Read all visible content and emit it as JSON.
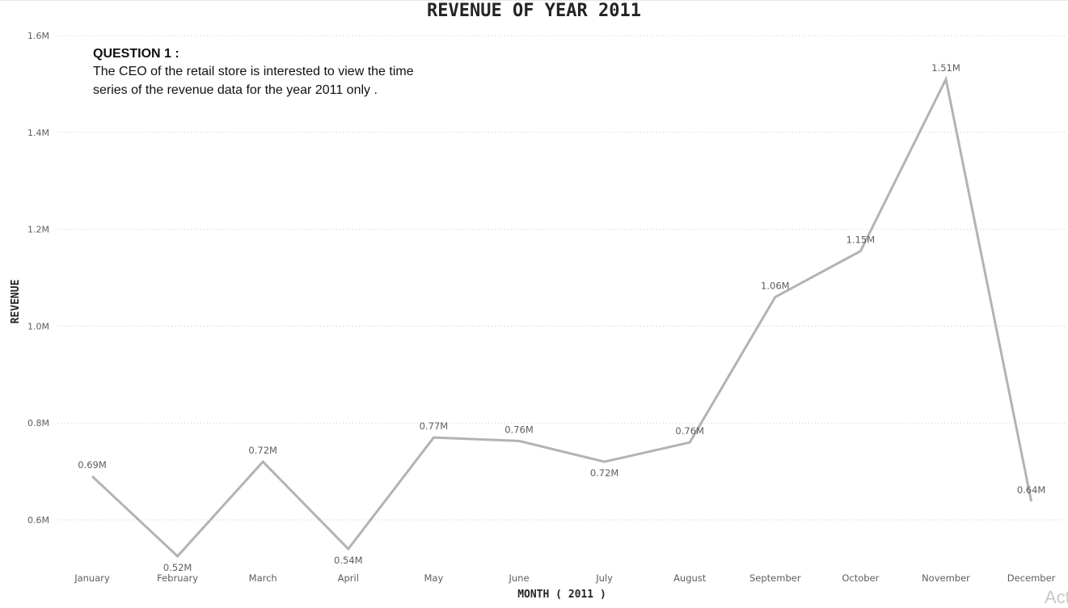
{
  "question": {
    "heading": "QUESTION 1 :",
    "body": "The CEO of the retail store is interested to view the time series of the revenue data for the year 2011 only ."
  },
  "watermark": "Act",
  "chart_data": {
    "type": "line",
    "title": "REVENUE OF YEAR 2011",
    "xlabel": "MONTH ( 2011 )",
    "ylabel": "REVENUE",
    "categories": [
      "January",
      "February",
      "March",
      "April",
      "May",
      "June",
      "July",
      "August",
      "September",
      "October",
      "November",
      "December"
    ],
    "values": [
      0.69,
      0.525,
      0.72,
      0.54,
      0.77,
      0.763,
      0.72,
      0.76,
      1.06,
      1.155,
      1.51,
      0.638
    ],
    "data_labels": [
      "0.69M",
      "0.52M",
      "0.72M",
      "0.54M",
      "0.77M",
      "0.76M",
      "0.72M",
      "0.76M",
      "1.06M",
      "1.15M",
      "1.51M",
      "0.64M"
    ],
    "yticks": [
      0.6,
      0.8,
      1.0,
      1.2,
      1.4,
      1.6
    ],
    "ytick_labels": [
      "0.6M",
      "0.8M",
      "1.0M",
      "1.2M",
      "1.4M",
      "1.6M"
    ],
    "ylim": [
      0.47,
      1.6
    ],
    "grid": true,
    "line_color": "#b3b3b3",
    "text_color": "#605e5c",
    "grid_color": "#c8c8c8"
  }
}
